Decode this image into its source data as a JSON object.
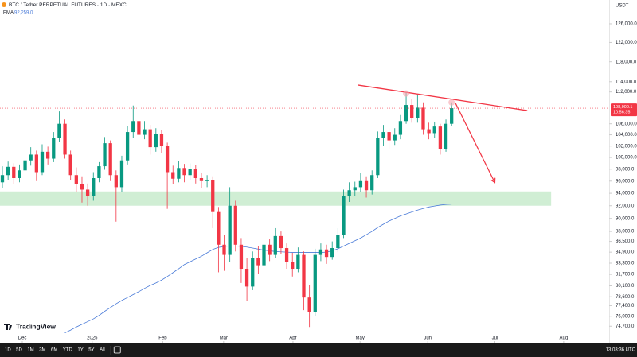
{
  "header": {
    "title": "BTC / Tether PERPETUAL FUTURES · 1D · MEXC",
    "currency": "USDT",
    "logo": "TradingView"
  },
  "toolbar": {
    "ranges": [
      "1D",
      "5D",
      "1M",
      "3M",
      "6M",
      "YTD",
      "1Y",
      "5Y",
      "All"
    ],
    "clock": "13:03:36 UTC"
  },
  "chart_data": {
    "type": "candlestick",
    "log_scale": true,
    "grid": false,
    "up_color": "#089981",
    "down_color": "#f23645",
    "xlim": [
      -0.42,
      106.7
    ],
    "xticks": [
      {
        "value": 3.5,
        "label": "Dec"
      },
      {
        "value": 15.8,
        "label": "2025"
      },
      {
        "value": 28.2,
        "label": "Feb"
      },
      {
        "value": 38.9,
        "label": "Mar"
      },
      {
        "value": 51.1,
        "label": "Apr"
      },
      {
        "value": 62.9,
        "label": "May"
      },
      {
        "value": 74.8,
        "label": "Jun"
      },
      {
        "value": 86.6,
        "label": "Jul"
      },
      {
        "value": 98.7,
        "label": "Aug"
      }
    ],
    "ylim": [
      72700,
      131300
    ],
    "yticks": [
      {
        "value": 126000,
        "label": "126,000.0"
      },
      {
        "value": 122000,
        "label": "122,000.0"
      },
      {
        "value": 118000,
        "label": "118,000.0"
      },
      {
        "value": 114000,
        "label": "114,000.0"
      },
      {
        "value": 112000,
        "label": "112,000.0"
      },
      {
        "value": 106000,
        "label": "106,000.0"
      },
      {
        "value": 104000,
        "label": "104,000.0"
      },
      {
        "value": 102000,
        "label": "102,000.0"
      },
      {
        "value": 100000,
        "label": "100,000.0"
      },
      {
        "value": 98000,
        "label": "98,000.0"
      },
      {
        "value": 96000,
        "label": "96,000.0"
      },
      {
        "value": 94000,
        "label": "94,000.0"
      },
      {
        "value": 92000,
        "label": "92,000.0"
      },
      {
        "value": 90000,
        "label": "90,000.0"
      },
      {
        "value": 88000,
        "label": "88,000.0"
      },
      {
        "value": 86500,
        "label": "86,500.0"
      },
      {
        "value": 84900,
        "label": "84,900.0"
      },
      {
        "value": 83300,
        "label": "83,300.0"
      },
      {
        "value": 81700,
        "label": "81,700.0"
      },
      {
        "value": 80100,
        "label": "80,100.0"
      },
      {
        "value": 78600,
        "label": "78,600.0"
      },
      {
        "value": 77400,
        "label": "77,400.0"
      },
      {
        "value": 76000,
        "label": "76,000.0"
      },
      {
        "value": 74700,
        "label": "74,700.0"
      }
    ],
    "open": [
      95800,
      97000,
      98400,
      96500,
      97800,
      99500,
      100500,
      97500,
      101000,
      99800,
      103500,
      106000,
      100500,
      97000,
      95500,
      94600,
      93500,
      96500,
      98500,
      102500,
      97000,
      95000,
      99500,
      104500,
      106500,
      104000,
      105000,
      101800,
      104200,
      102000,
      97500,
      96400,
      98200,
      97000,
      98000,
      96500,
      96000,
      96200,
      91000,
      86000,
      84500,
      92000,
      86000,
      82500,
      80000,
      84000,
      83000,
      86000,
      84500,
      87300,
      85500,
      83500,
      82500,
      84500,
      78500,
      76500,
      84500,
      85300,
      84200,
      85500,
      87500,
      93500,
      94500,
      95000,
      96000,
      94500,
      97000,
      103500,
      104500,
      103000,
      104000,
      106500,
      109500,
      107000,
      109000,
      105000,
      104300,
      105500,
      101500,
      106000
    ],
    "high": [
      98500,
      99300,
      99000,
      98800,
      100600,
      101800,
      101200,
      102300,
      101900,
      104500,
      108300,
      106800,
      101200,
      98300,
      96800,
      95600,
      97500,
      99200,
      103600,
      103000,
      97800,
      100300,
      105600,
      109400,
      107200,
      106500,
      105800,
      105200,
      104800,
      102600,
      98600,
      99400,
      98900,
      99000,
      98700,
      97300,
      97000,
      96800,
      91800,
      87500,
      95000,
      92800,
      87000,
      84000,
      85000,
      85800,
      87000,
      86800,
      88500,
      88000,
      86200,
      84800,
      85600,
      85000,
      80200,
      85400,
      86200,
      86000,
      86500,
      88500,
      94600,
      95800,
      95900,
      97400,
      96800,
      97800,
      104600,
      105800,
      105200,
      105200,
      107600,
      111900,
      110600,
      111500,
      110000,
      106200,
      106400,
      106000,
      106800,
      110000
    ],
    "low": [
      94800,
      96200,
      95500,
      95800,
      97000,
      98600,
      96000,
      97000,
      98800,
      99200,
      102800,
      99800,
      96200,
      94200,
      92500,
      92000,
      92800,
      95800,
      97900,
      96000,
      89500,
      94200,
      98800,
      103500,
      102500,
      103200,
      100500,
      101000,
      100800,
      91500,
      95500,
      95800,
      95800,
      96200,
      95600,
      94800,
      95000,
      88500,
      82000,
      82200,
      83500,
      85000,
      80500,
      78000,
      79500,
      81800,
      82200,
      83600,
      84000,
      84600,
      82500,
      81400,
      82000,
      76800,
      74600,
      76000,
      83600,
      83200,
      83800,
      84900,
      87000,
      92600,
      93500,
      94200,
      93300,
      93800,
      96500,
      102000,
      101500,
      102200,
      103200,
      106000,
      106200,
      106200,
      104000,
      103200,
      103500,
      100500,
      101000,
      105600
    ],
    "close": [
      97000,
      98400,
      96500,
      97800,
      99500,
      100500,
      97500,
      101000,
      99800,
      103500,
      106000,
      100500,
      97000,
      95500,
      94600,
      93500,
      96500,
      98500,
      102500,
      97000,
      95000,
      99500,
      104500,
      106500,
      104000,
      105000,
      101800,
      104200,
      102000,
      97500,
      96400,
      98200,
      97000,
      98000,
      96500,
      96000,
      96200,
      91000,
      86000,
      84500,
      92000,
      86000,
      82500,
      80000,
      84000,
      83000,
      86000,
      84500,
      87300,
      85500,
      83500,
      82500,
      84500,
      78500,
      76500,
      84500,
      85300,
      84200,
      85500,
      87500,
      93500,
      94500,
      95000,
      96000,
      94500,
      97000,
      103500,
      104500,
      103000,
      104000,
      106500,
      109500,
      107000,
      109000,
      105000,
      104300,
      105500,
      101500,
      106000,
      108900
    ],
    "series": [
      {
        "name": "EMA",
        "color": "#4a7bd8",
        "values": [
          null,
          null,
          null,
          null,
          null,
          null,
          null,
          null,
          null,
          null,
          null,
          73850,
          74200,
          74600,
          74950,
          75300,
          75650,
          76100,
          76650,
          77150,
          77650,
          78100,
          78500,
          78900,
          79300,
          79750,
          80150,
          80500,
          80900,
          81400,
          81950,
          82500,
          83100,
          83500,
          83900,
          84300,
          84800,
          85300,
          85600,
          85750,
          85800,
          85800,
          85750,
          85650,
          85500,
          85350,
          85200,
          85100,
          85000,
          84950,
          84900,
          84850,
          84850,
          84850,
          84850,
          84850,
          84850,
          84900,
          85100,
          85400,
          85800,
          86200,
          86600,
          87000,
          87500,
          88000,
          88600,
          89100,
          89600,
          90000,
          90400,
          90700,
          91000,
          91300,
          91550,
          91800,
          91950,
          92100,
          92200,
          92259
        ],
        "value_labels": [
          null,
          null,
          null,
          null,
          null,
          null,
          null,
          null,
          null,
          null,
          null,
          null,
          null,
          null,
          null,
          null,
          null,
          null,
          null,
          null,
          null,
          null,
          null,
          null,
          null,
          null,
          null,
          null,
          null,
          null,
          null,
          null,
          null,
          null,
          null,
          null,
          null,
          null,
          null,
          null,
          null,
          null,
          null,
          null,
          null,
          null,
          null,
          null,
          null,
          null,
          null,
          null,
          null,
          null,
          null,
          null,
          null,
          null,
          null,
          null,
          null,
          null,
          null,
          null,
          null,
          null,
          null,
          null,
          null,
          null,
          null,
          null,
          null,
          null,
          null,
          null,
          null,
          null,
          null,
          "92,259.0"
        ]
      }
    ],
    "last_price": {
      "value": 108900.1,
      "label": "108,900.1",
      "countdown": "10:56:35",
      "color": "#f23645"
    },
    "zone": {
      "x": [
        -0.42,
        96.5
      ],
      "y": [
        92000,
        94300
      ],
      "color": "#c8ebcd"
    },
    "trendline": {
      "x": [
        62.5,
        92.3
      ],
      "y": [
        113350,
        108450
      ],
      "color": "#f23645"
    },
    "arrow": {
      "x": [
        79.7,
        86.6
      ],
      "y": [
        109800,
        95750
      ],
      "color": "#f23645"
    },
    "markers": {
      "x": [
        71,
        79
      ],
      "y": [
        111700,
        110000
      ],
      "color": "#f7a5ad"
    }
  }
}
